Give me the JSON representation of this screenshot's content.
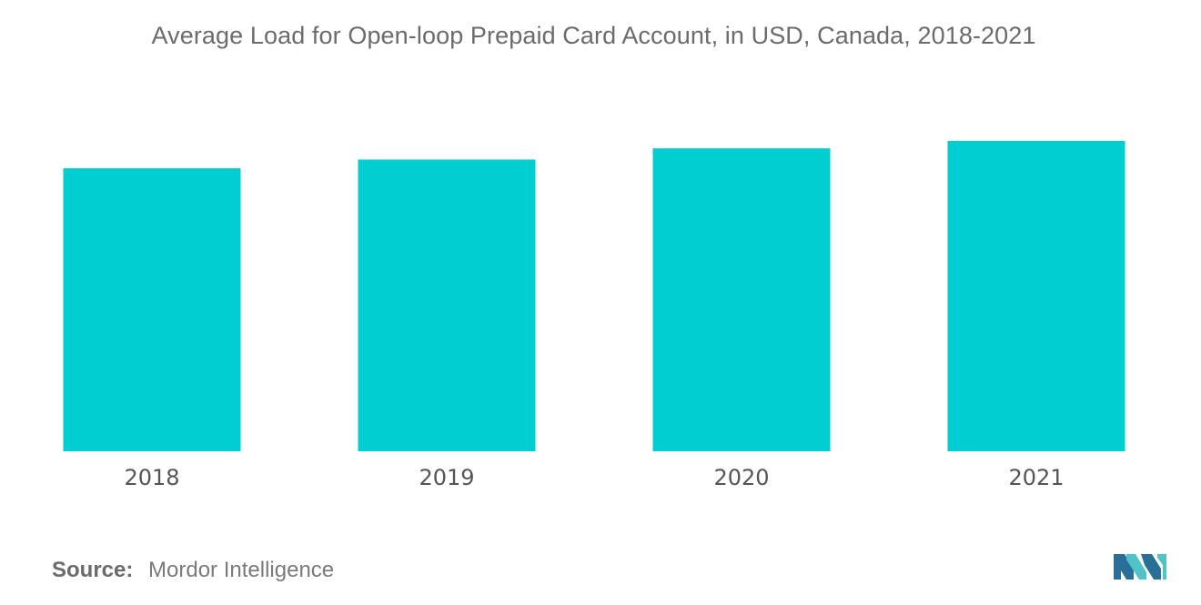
{
  "chart_data": {
    "type": "bar",
    "title": "Average Load for Open-loop Prepaid Card Account, in USD, Canada, 2018-2021",
    "categories": [
      "2018",
      "2019",
      "2020",
      "2021"
    ],
    "series": [
      {
        "values": [
          227,
          234,
          243,
          249
        ]
      }
    ],
    "ylim": [
      0,
      300
    ],
    "xlabel": "",
    "ylabel": "",
    "grid": false,
    "legend": "none",
    "bar_color": "#00ced1"
  },
  "source": {
    "label": "Source:",
    "text": "Mordor Intelligence"
  },
  "logo": {
    "icon": "mordor-intelligence-logo-icon",
    "colors": [
      "#2a6f97",
      "#4fc3c8"
    ]
  }
}
